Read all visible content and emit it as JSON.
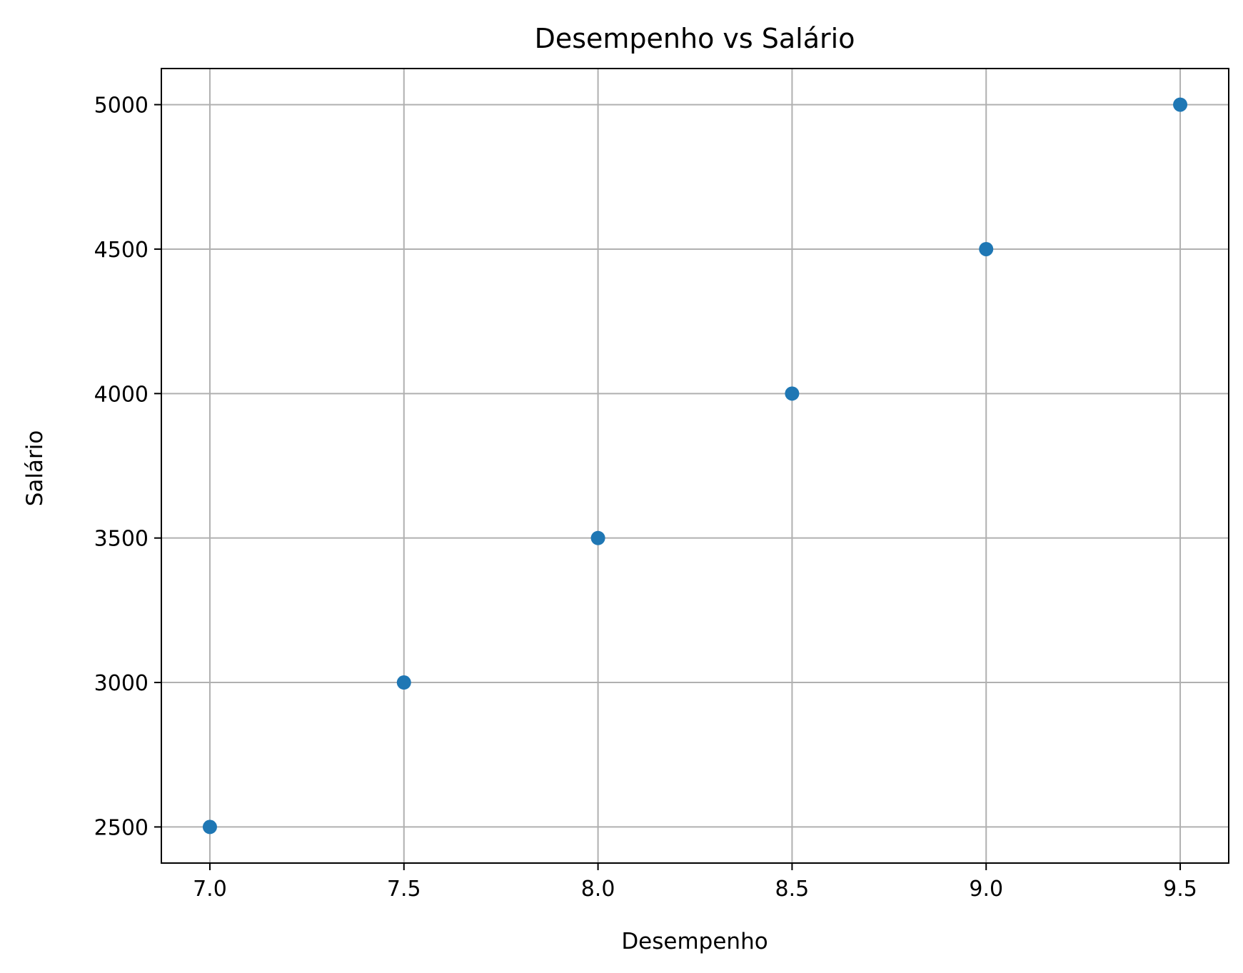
{
  "chart_data": {
    "type": "scatter",
    "title": "Desempenho vs Salário",
    "xlabel": "Desempenho",
    "ylabel": "Salário",
    "x": [
      7.0,
      7.5,
      8.0,
      8.5,
      9.0,
      9.5
    ],
    "y": [
      2500,
      3000,
      3500,
      4000,
      4500,
      5000
    ],
    "xlim": [
      6.875,
      9.625
    ],
    "ylim": [
      2375,
      5125
    ],
    "xticks": [
      7.0,
      7.5,
      8.0,
      8.5,
      9.0,
      9.5
    ],
    "xtick_labels": [
      "7.0",
      "7.5",
      "8.0",
      "8.5",
      "9.0",
      "9.5"
    ],
    "yticks": [
      2500,
      3000,
      3500,
      4000,
      4500,
      5000
    ],
    "ytick_labels": [
      "2500",
      "3000",
      "3500",
      "4000",
      "4500",
      "5000"
    ],
    "grid": true,
    "legend": "none",
    "colors": {
      "points": "#1f77b4",
      "grid": "#b0b0b0"
    }
  }
}
